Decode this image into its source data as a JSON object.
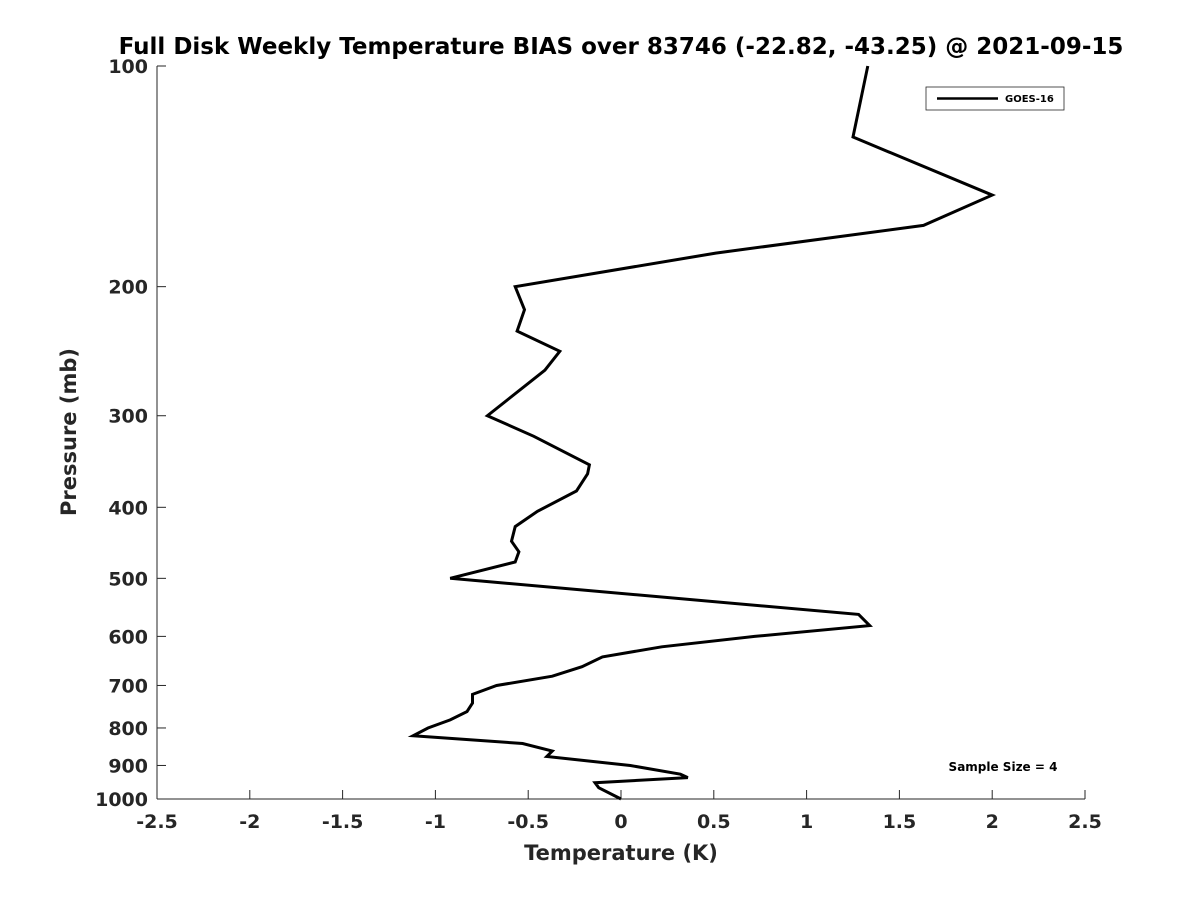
{
  "chart_data": {
    "type": "line",
    "title": "Full Disk Weekly Temperature BIAS over 83746 (-22.82, -43.25) @ 2021-09-15",
    "xlabel": "Temperature (K)",
    "ylabel": "Pressure (mb)",
    "xlim": [
      -2.5,
      2.5
    ],
    "ylim": [
      100,
      1000
    ],
    "y_scale": "log",
    "y_reversed": true,
    "grid": false,
    "legend_position": "top-right",
    "x_ticks": [
      -2.5,
      -2,
      -1.5,
      -1,
      -0.5,
      0,
      0.5,
      1,
      1.5,
      2,
      2.5
    ],
    "x_tick_labels": [
      "-2.5",
      "-2",
      "-1.5",
      "-1",
      "-0.5",
      "0",
      "0.5",
      "1",
      "1.5",
      "2",
      "2.5"
    ],
    "y_ticks": [
      100,
      200,
      300,
      400,
      500,
      600,
      700,
      800,
      900,
      1000
    ],
    "y_tick_labels": [
      "100",
      "200",
      "300",
      "400",
      "500",
      "600",
      "700",
      "800",
      "900",
      "1000"
    ],
    "annotation": "Sample Size = 4",
    "series": [
      {
        "name": "GOES-16",
        "color": "#000000",
        "points": [
          {
            "x": 1.33,
            "y": 100
          },
          {
            "x": 1.25,
            "y": 125
          },
          {
            "x": 2.0,
            "y": 150
          },
          {
            "x": 1.63,
            "y": 165
          },
          {
            "x": 0.51,
            "y": 180
          },
          {
            "x": -0.57,
            "y": 200
          },
          {
            "x": -0.52,
            "y": 215
          },
          {
            "x": -0.56,
            "y": 230
          },
          {
            "x": -0.33,
            "y": 245
          },
          {
            "x": -0.41,
            "y": 260
          },
          {
            "x": -0.72,
            "y": 300
          },
          {
            "x": -0.47,
            "y": 320
          },
          {
            "x": -0.17,
            "y": 350
          },
          {
            "x": -0.18,
            "y": 360
          },
          {
            "x": -0.24,
            "y": 380
          },
          {
            "x": -0.45,
            "y": 405
          },
          {
            "x": -0.57,
            "y": 425
          },
          {
            "x": -0.59,
            "y": 445
          },
          {
            "x": -0.55,
            "y": 460
          },
          {
            "x": -0.57,
            "y": 475
          },
          {
            "x": -0.92,
            "y": 500
          },
          {
            "x": 1.28,
            "y": 560
          },
          {
            "x": 1.34,
            "y": 580
          },
          {
            "x": 0.72,
            "y": 600
          },
          {
            "x": 0.22,
            "y": 620
          },
          {
            "x": -0.1,
            "y": 640
          },
          {
            "x": -0.21,
            "y": 660
          },
          {
            "x": -0.37,
            "y": 680
          },
          {
            "x": -0.67,
            "y": 700
          },
          {
            "x": -0.8,
            "y": 720
          },
          {
            "x": -0.8,
            "y": 740
          },
          {
            "x": -0.83,
            "y": 760
          },
          {
            "x": -0.92,
            "y": 780
          },
          {
            "x": -1.04,
            "y": 800
          },
          {
            "x": -1.12,
            "y": 820
          },
          {
            "x": -0.53,
            "y": 840
          },
          {
            "x": -0.37,
            "y": 860
          },
          {
            "x": -0.4,
            "y": 875
          },
          {
            "x": 0.05,
            "y": 900
          },
          {
            "x": 0.32,
            "y": 925
          },
          {
            "x": 0.36,
            "y": 935
          },
          {
            "x": -0.14,
            "y": 950
          },
          {
            "x": -0.12,
            "y": 965
          },
          {
            "x": 0.0,
            "y": 1000
          }
        ]
      }
    ]
  }
}
